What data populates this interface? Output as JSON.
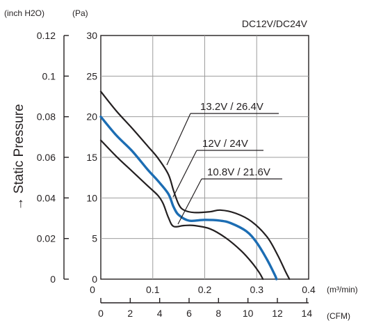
{
  "chart_data": {
    "type": "line",
    "model_label": "DC12V/DC24V",
    "ylabel": "→ Static Pressure",
    "y_unit_inch": "(inch H2O)",
    "y_unit_pa": "(Pa)",
    "x_unit_m3": "(m³/min)",
    "x_unit_cfm": "(CFM)",
    "xlim": [
      0,
      0.4
    ],
    "ylim_pa": [
      0,
      30
    ],
    "grid": true,
    "x_ticks_m3": [
      "0",
      "0.1",
      "0.2",
      "0.3",
      "0.4"
    ],
    "x_ticks_cfm": [
      "0",
      "2",
      "4",
      "6",
      "8",
      "10",
      "12",
      "14"
    ],
    "y_ticks_pa": [
      "0",
      "5",
      "10",
      "15",
      "20",
      "25",
      "30"
    ],
    "y_ticks_inch": [
      "0",
      "0.02",
      "0.04",
      "0.06",
      "0.08",
      "0.1",
      "0.12"
    ],
    "series": [
      {
        "name": "13.2V / 26.4V",
        "color": "#231f20",
        "points": [
          [
            0,
            23.1
          ],
          [
            0.03,
            20.7
          ],
          [
            0.06,
            18.6
          ],
          [
            0.09,
            16.4
          ],
          [
            0.11,
            14.9
          ],
          [
            0.13,
            12.9
          ],
          [
            0.14,
            10.9
          ],
          [
            0.15,
            9.2
          ],
          [
            0.16,
            8.5
          ],
          [
            0.18,
            8.2
          ],
          [
            0.21,
            8.3
          ],
          [
            0.23,
            8.5
          ],
          [
            0.26,
            8.1
          ],
          [
            0.29,
            7.1
          ],
          [
            0.32,
            5.2
          ],
          [
            0.34,
            3.0
          ],
          [
            0.355,
            1.0
          ],
          [
            0.363,
            0
          ]
        ]
      },
      {
        "name": "12V / 24V",
        "color": "#1c6db3",
        "points": [
          [
            0,
            20.0
          ],
          [
            0.03,
            17.7
          ],
          [
            0.06,
            15.8
          ],
          [
            0.09,
            13.5
          ],
          [
            0.11,
            12.1
          ],
          [
            0.13,
            10.5
          ],
          [
            0.14,
            8.9
          ],
          [
            0.15,
            7.9
          ],
          [
            0.17,
            7.2
          ],
          [
            0.2,
            7.3
          ],
          [
            0.23,
            7.2
          ],
          [
            0.25,
            6.9
          ],
          [
            0.28,
            5.9
          ],
          [
            0.3,
            4.5
          ],
          [
            0.32,
            2.4
          ],
          [
            0.335,
            0.5
          ],
          [
            0.338,
            0
          ]
        ]
      },
      {
        "name": "10.8V / 21.6V",
        "color": "#231f20",
        "points": [
          [
            0,
            17.1
          ],
          [
            0.03,
            15.1
          ],
          [
            0.06,
            13.3
          ],
          [
            0.09,
            11.5
          ],
          [
            0.11,
            10.3
          ],
          [
            0.12,
            9.3
          ],
          [
            0.13,
            7.6
          ],
          [
            0.14,
            6.5
          ],
          [
            0.16,
            6.6
          ],
          [
            0.18,
            6.6
          ],
          [
            0.21,
            6.2
          ],
          [
            0.24,
            5.1
          ],
          [
            0.27,
            3.5
          ],
          [
            0.29,
            2.1
          ],
          [
            0.305,
            0.8
          ],
          [
            0.312,
            0
          ]
        ]
      }
    ]
  }
}
